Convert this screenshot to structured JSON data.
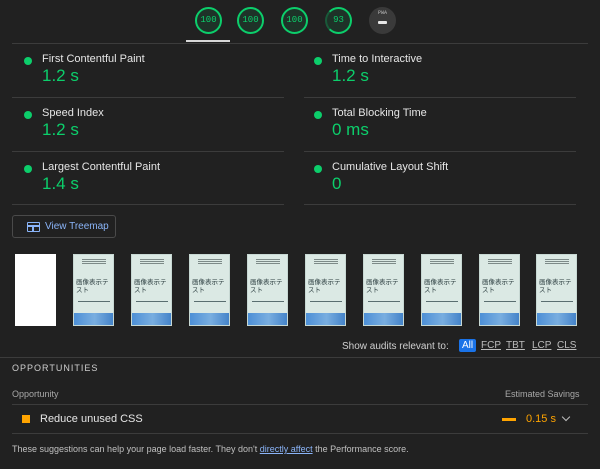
{
  "scores": [
    {
      "name": "performance",
      "value": "100"
    },
    {
      "name": "accessibility",
      "value": "100"
    },
    {
      "name": "best_practices",
      "value": "100"
    },
    {
      "name": "seo",
      "value": "93"
    },
    {
      "name": "pwa",
      "value": "PWA"
    }
  ],
  "metrics": {
    "fcp": {
      "label": "First Contentful Paint",
      "value": "1.2 s"
    },
    "tti": {
      "label": "Time to Interactive",
      "value": "1.2 s"
    },
    "si": {
      "label": "Speed Index",
      "value": "1.2 s"
    },
    "tbt": {
      "label": "Total Blocking Time",
      "value": "0 ms"
    },
    "lcp": {
      "label": "Largest Contentful Paint",
      "value": "1.4 s"
    },
    "cls": {
      "label": "Cumulative Layout Shift",
      "value": "0"
    }
  },
  "treemap": {
    "label": "View Treemap"
  },
  "filmstrip": {
    "frame_title_line1": "画像表示テ",
    "frame_title_line2": "スト"
  },
  "filter": {
    "label": "Show audits relevant to:",
    "chips": [
      "All",
      "FCP",
      "TBT",
      "LCP",
      "CLS"
    ],
    "selected": "All"
  },
  "opportunities": {
    "section_title": "OPPORTUNITIES",
    "col_opportunity": "Opportunity",
    "col_savings": "Estimated Savings",
    "items": [
      {
        "label": "Reduce unused CSS",
        "savings": "0.15 s"
      }
    ]
  },
  "footer": {
    "text_before": "These suggestions can help your page load faster. They don't ",
    "link": "directly affect",
    "text_after": " the Performance score."
  },
  "colors": {
    "pass": "#0cce6b",
    "average": "#ffa400",
    "link": "#8ab4f8",
    "background": "#212121"
  }
}
